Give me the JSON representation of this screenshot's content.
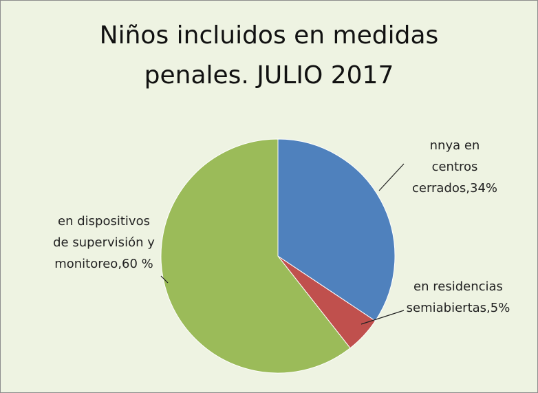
{
  "chart_data": {
    "type": "pie",
    "title": "Niños incluidos en medidas penales. JULIO 2017",
    "categories": [
      "nnya en centros cerrados,",
      "en residencias semiabiertas,",
      "en dispositivos de supervisión y monitoreo,"
    ],
    "values": [
      34,
      5,
      60
    ],
    "value_labels": [
      "34%",
      "5%",
      "60 %"
    ],
    "colors": [
      "#4f81bd",
      "#c0504d",
      "#9bbb59"
    ]
  }
}
